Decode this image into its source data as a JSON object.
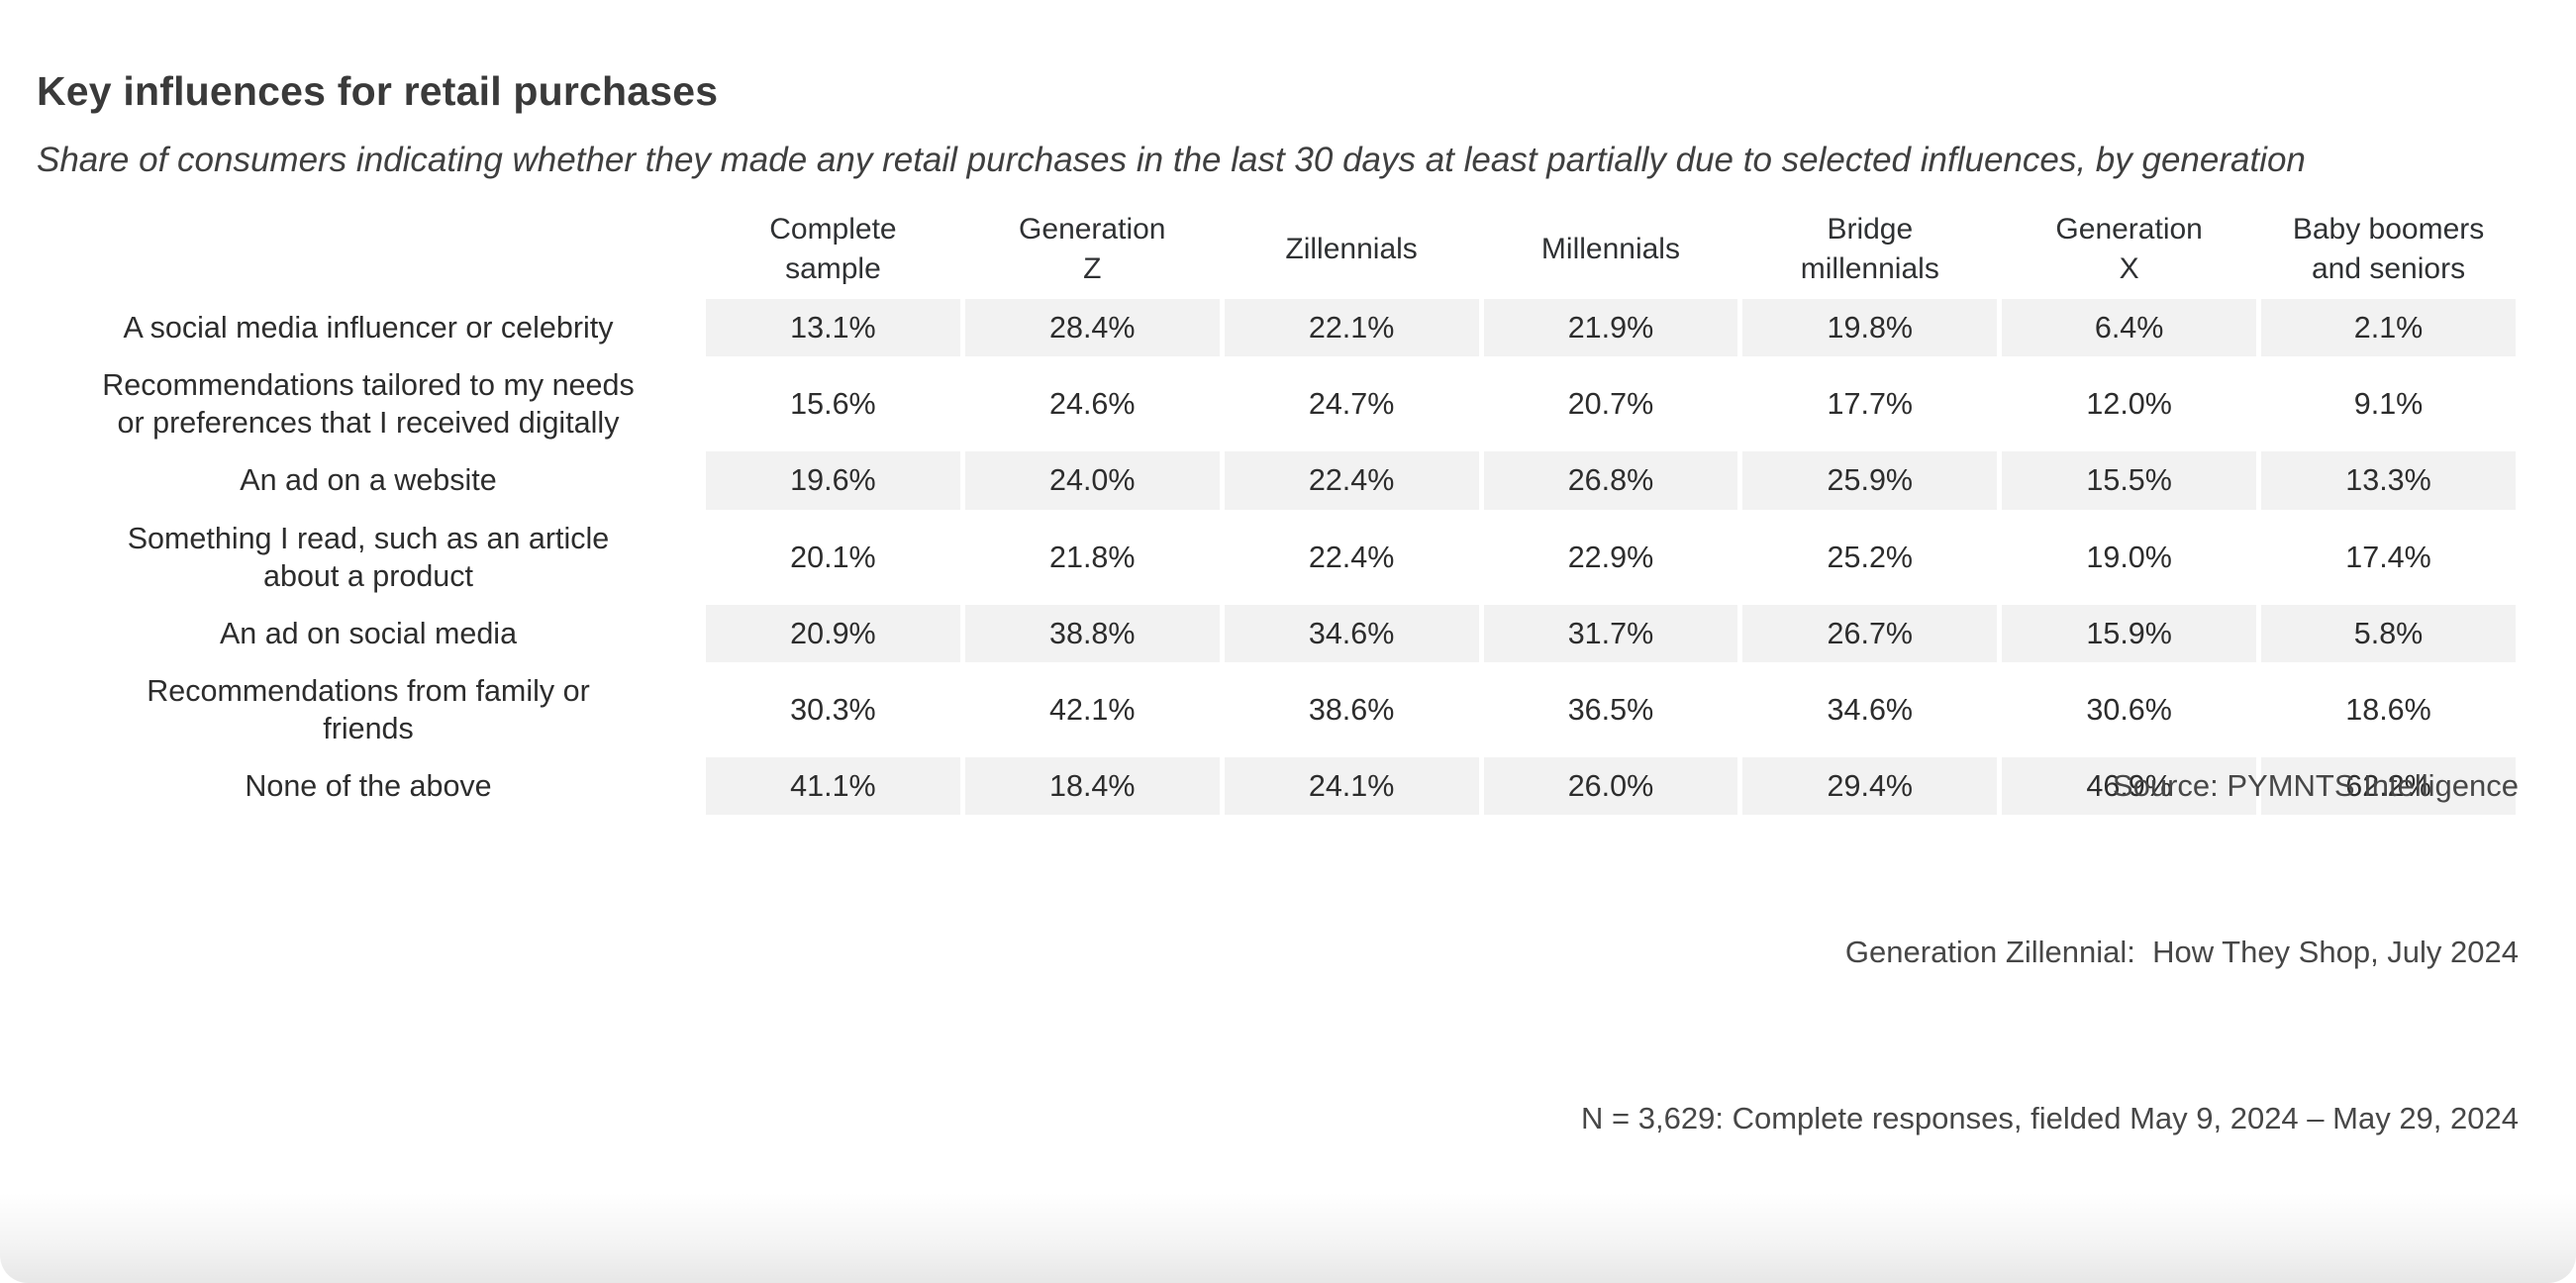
{
  "page": {
    "title": "Key influences for retail purchases",
    "subtitle": "Share of consumers indicating whether they made any retail purchases in the last 30 days at least partially due to selected influences, by generation"
  },
  "table": {
    "columns": [
      {
        "label": "Complete\nsample"
      },
      {
        "label": "Generation\nZ"
      },
      {
        "label": "Zillennials"
      },
      {
        "label": "Millennials"
      },
      {
        "label": "Bridge\nmillennials"
      },
      {
        "label": "Generation\nX"
      },
      {
        "label": "Baby boomers\nand seniors"
      }
    ],
    "rows": [
      {
        "label": "A social media influencer or celebrity",
        "values": [
          "13.1%",
          "28.4%",
          "22.1%",
          "21.9%",
          "19.8%",
          "6.4%",
          "2.1%"
        ]
      },
      {
        "label": "Recommendations tailored to my needs\nor preferences that I received digitally",
        "values": [
          "15.6%",
          "24.6%",
          "24.7%",
          "20.7%",
          "17.7%",
          "12.0%",
          "9.1%"
        ]
      },
      {
        "label": "An ad on a website",
        "values": [
          "19.6%",
          "24.0%",
          "22.4%",
          "26.8%",
          "25.9%",
          "15.5%",
          "13.3%"
        ]
      },
      {
        "label": "Something I read, such as an article\nabout a product",
        "values": [
          "20.1%",
          "21.8%",
          "22.4%",
          "22.9%",
          "25.2%",
          "19.0%",
          "17.4%"
        ]
      },
      {
        "label": "An ad on social media",
        "values": [
          "20.9%",
          "38.8%",
          "34.6%",
          "31.7%",
          "26.7%",
          "15.9%",
          "5.8%"
        ]
      },
      {
        "label": "Recommendations from family or\nfriends",
        "values": [
          "30.3%",
          "42.1%",
          "38.6%",
          "36.5%",
          "34.6%",
          "30.6%",
          "18.6%"
        ]
      },
      {
        "label": "None of the above",
        "values": [
          "41.1%",
          "18.4%",
          "24.1%",
          "26.0%",
          "29.4%",
          "46.9%",
          "62.2%"
        ]
      }
    ]
  },
  "footer": {
    "source_line": "Source: PYMNTS Intelligence",
    "report_line": "Generation Zillennial:  How They Shop, July 2024",
    "sample_line": "N = 3,629: Complete responses, fielded May 9, 2024 – May 29, 2024"
  },
  "colors": {
    "stripe": "#f2f2f2",
    "title_text": "#3a3a3a",
    "body_text": "#2d2d2d",
    "footer_text": "#474747",
    "background": "#ffffff"
  },
  "chart_data": {
    "type": "table",
    "title": "Key influences for retail purchases",
    "subtitle": "Share of consumers indicating whether they made any retail purchases in the last 30 days at least partially due to selected influences, by generation",
    "unit": "%",
    "columns": [
      "Complete sample",
      "Generation Z",
      "Zillennials",
      "Millennials",
      "Bridge millennials",
      "Generation X",
      "Baby boomers and seniors"
    ],
    "rows": [
      {
        "label": "A social media influencer or celebrity",
        "values": [
          13.1,
          28.4,
          22.1,
          21.9,
          19.8,
          6.4,
          2.1
        ]
      },
      {
        "label": "Recommendations tailored to my needs or preferences that I received digitally",
        "values": [
          15.6,
          24.6,
          24.7,
          20.7,
          17.7,
          12.0,
          9.1
        ]
      },
      {
        "label": "An ad on a website",
        "values": [
          19.6,
          24.0,
          22.4,
          26.8,
          25.9,
          15.5,
          13.3
        ]
      },
      {
        "label": "Something I read, such as an article about a product",
        "values": [
          20.1,
          21.8,
          22.4,
          22.9,
          25.2,
          19.0,
          17.4
        ]
      },
      {
        "label": "An ad on social media",
        "values": [
          20.9,
          38.8,
          34.6,
          31.7,
          26.7,
          15.9,
          5.8
        ]
      },
      {
        "label": "Recommendations from family or friends",
        "values": [
          30.3,
          42.1,
          38.6,
          36.5,
          34.6,
          30.6,
          18.6
        ]
      },
      {
        "label": "None of the above",
        "values": [
          41.1,
          18.4,
          24.1,
          26.0,
          29.4,
          46.9,
          62.2
        ]
      }
    ],
    "layout": {
      "striped_rows": "odd",
      "stripe_color": "#f2f2f2",
      "value_alignment": "center",
      "label_alignment": "center"
    }
  }
}
